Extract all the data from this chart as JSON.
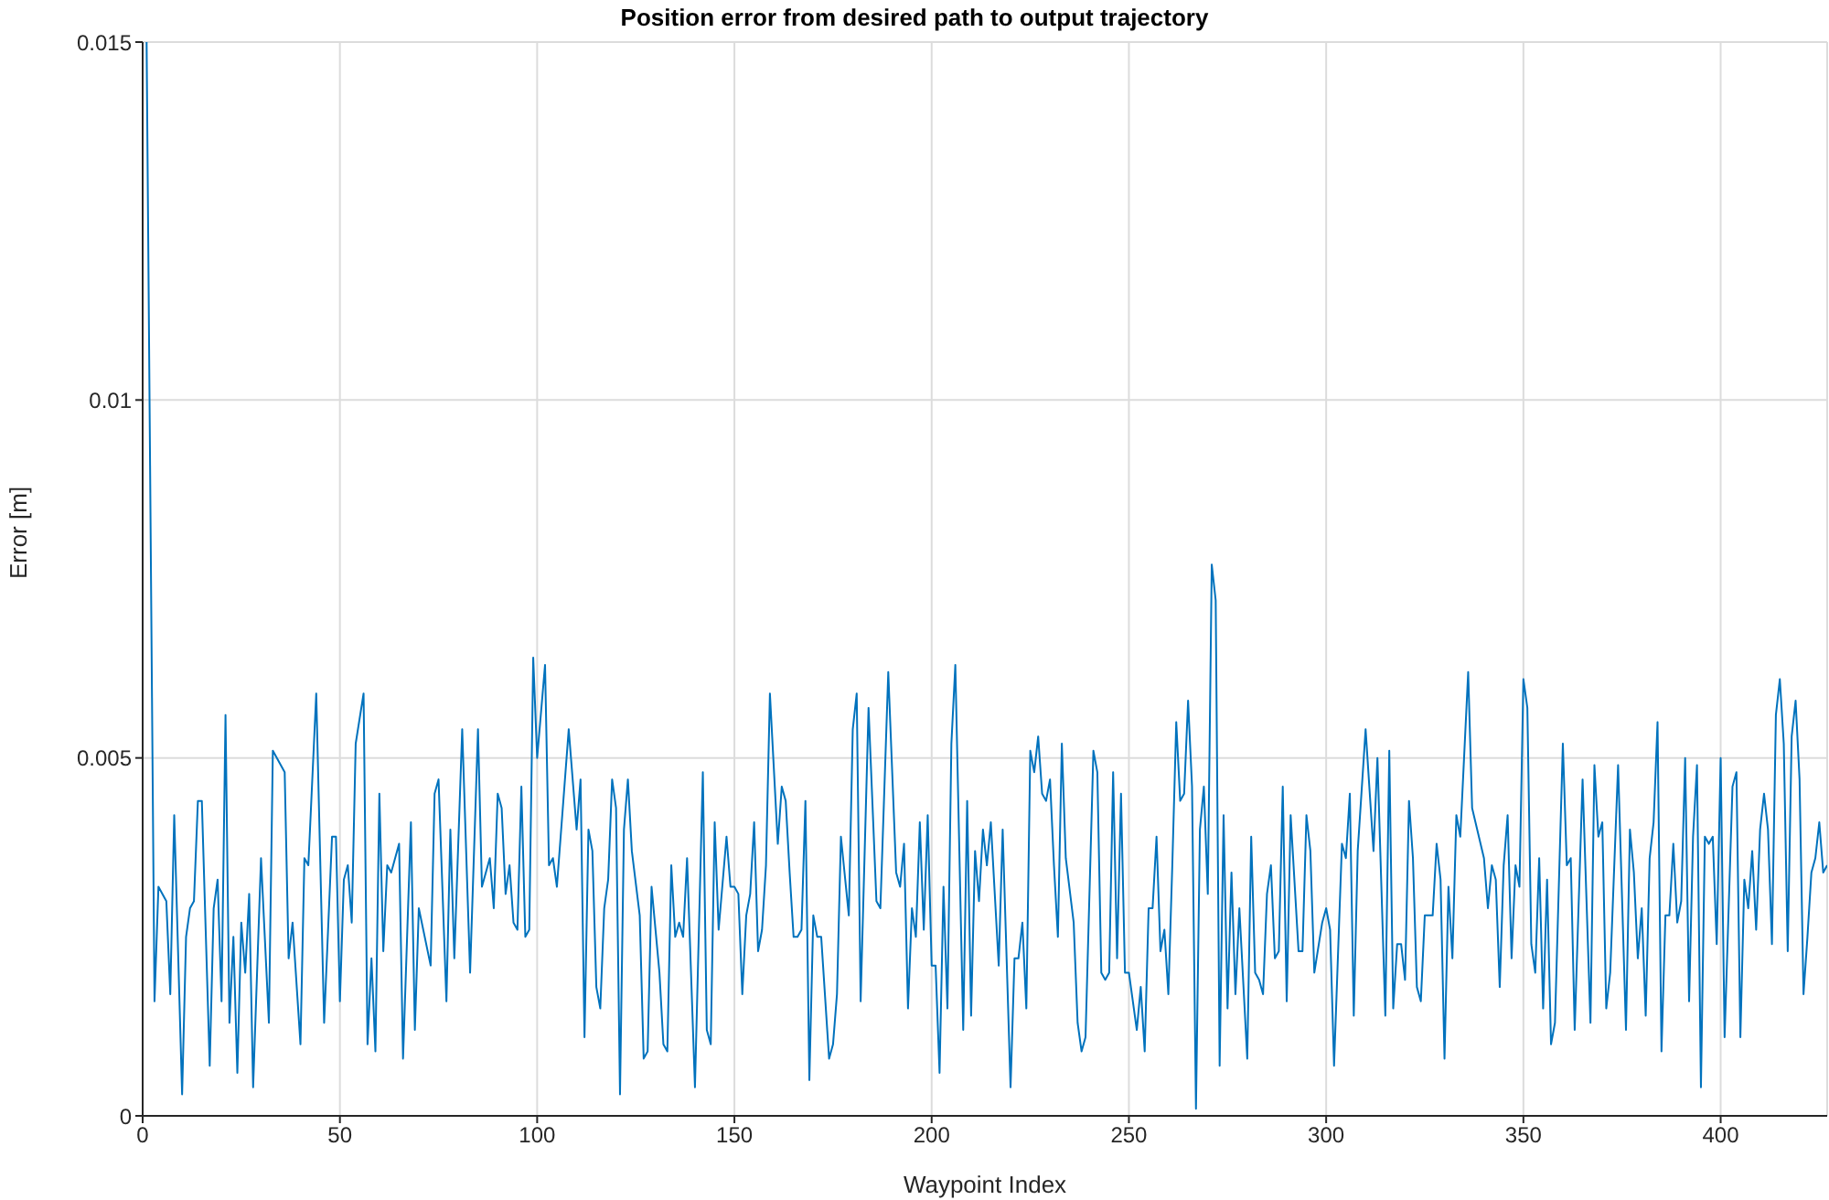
{
  "chart_data": {
    "type": "line",
    "title": "Position error from desired path to output trajectory",
    "xlabel": "Waypoint Index",
    "ylabel": "Error [m]",
    "x": [
      1,
      3,
      4,
      6,
      7,
      8,
      10,
      11,
      12,
      13,
      14,
      15,
      17,
      18,
      19,
      20,
      21,
      22,
      23,
      24,
      25,
      26,
      27,
      28,
      30,
      32,
      33,
      36,
      37,
      38,
      40,
      41,
      42,
      44,
      46,
      48,
      49,
      50,
      51,
      52,
      53,
      54,
      56,
      57,
      58,
      59,
      60,
      61,
      62,
      63,
      65,
      66,
      68,
      69,
      70,
      73,
      74,
      75,
      77,
      78,
      79,
      81,
      83,
      85,
      86,
      88,
      89,
      90,
      91,
      92,
      93,
      94,
      95,
      96,
      97,
      98,
      99,
      100,
      102,
      103,
      104,
      105,
      108,
      110,
      111,
      112,
      113,
      114,
      115,
      116,
      117,
      118,
      119,
      120,
      121,
      122,
      123,
      124,
      126,
      127,
      128,
      129,
      131,
      132,
      133,
      134,
      135,
      136,
      137,
      138,
      140,
      142,
      143,
      144,
      145,
      146,
      148,
      149,
      150,
      151,
      152,
      153,
      154,
      155,
      156,
      157,
      158,
      159,
      161,
      162,
      163,
      164,
      165,
      166,
      167,
      168,
      169,
      170,
      171,
      172,
      174,
      175,
      176,
      177,
      179,
      180,
      181,
      182,
      184,
      186,
      187,
      189,
      191,
      192,
      193,
      194,
      195,
      196,
      197,
      198,
      199,
      200,
      201,
      202,
      203,
      204,
      205,
      206,
      208,
      209,
      210,
      211,
      212,
      213,
      214,
      215,
      217,
      218,
      220,
      221,
      222,
      223,
      224,
      225,
      226,
      227,
      228,
      229,
      230,
      231,
      232,
      233,
      234,
      236,
      237,
      238,
      239,
      241,
      242,
      243,
      244,
      245,
      246,
      247,
      248,
      249,
      250,
      252,
      253,
      254,
      255,
      256,
      257,
      258,
      259,
      260,
      261,
      262,
      263,
      264,
      265,
      266,
      267,
      268,
      269,
      270,
      271,
      272,
      273,
      274,
      275,
      276,
      277,
      278,
      280,
      281,
      282,
      283,
      284,
      285,
      286,
      287,
      288,
      289,
      290,
      291,
      293,
      294,
      295,
      296,
      297,
      299,
      300,
      301,
      302,
      304,
      305,
      306,
      307,
      308,
      310,
      312,
      313,
      315,
      316,
      317,
      318,
      319,
      320,
      321,
      322,
      323,
      324,
      325,
      327,
      328,
      329,
      330,
      331,
      332,
      333,
      334,
      336,
      337,
      340,
      341,
      342,
      343,
      344,
      345,
      346,
      347,
      348,
      349,
      350,
      351,
      352,
      353,
      354,
      355,
      356,
      357,
      358,
      360,
      361,
      362,
      363,
      365,
      367,
      368,
      369,
      370,
      371,
      372,
      374,
      376,
      377,
      378,
      379,
      380,
      381,
      382,
      383,
      384,
      385,
      386,
      387,
      388,
      389,
      390,
      391,
      392,
      393,
      394,
      395,
      396,
      397,
      398,
      399,
      400,
      401,
      403,
      404,
      405,
      406,
      407,
      408,
      409,
      410,
      411,
      412,
      413,
      414,
      415,
      416,
      417,
      418,
      419,
      420,
      421,
      422,
      423,
      424,
      425,
      426,
      427
    ],
    "values": [
      0.015,
      0.0016,
      0.0032,
      0.003,
      0.0017,
      0.0042,
      0.0003,
      0.0025,
      0.0029,
      0.003,
      0.0044,
      0.0044,
      0.0007,
      0.0029,
      0.0033,
      0.0016,
      0.0056,
      0.0013,
      0.0025,
      0.0006,
      0.0027,
      0.002,
      0.0031,
      0.0004,
      0.0036,
      0.0013,
      0.0051,
      0.0048,
      0.0022,
      0.0027,
      0.001,
      0.0036,
      0.0035,
      0.0059,
      0.0013,
      0.0039,
      0.0039,
      0.0016,
      0.0033,
      0.0035,
      0.0027,
      0.0052,
      0.0059,
      0.001,
      0.0022,
      0.0009,
      0.0045,
      0.0023,
      0.0035,
      0.0034,
      0.0038,
      0.0008,
      0.0041,
      0.0012,
      0.0029,
      0.0021,
      0.0045,
      0.0047,
      0.0016,
      0.004,
      0.0022,
      0.0054,
      0.002,
      0.0054,
      0.0032,
      0.0036,
      0.0029,
      0.0045,
      0.0043,
      0.0031,
      0.0035,
      0.0027,
      0.0026,
      0.0046,
      0.0025,
      0.0026,
      0.0064,
      0.005,
      0.0063,
      0.0035,
      0.0036,
      0.0032,
      0.0054,
      0.004,
      0.0047,
      0.0011,
      0.004,
      0.0037,
      0.0018,
      0.0015,
      0.0029,
      0.0033,
      0.0047,
      0.0043,
      0.0003,
      0.004,
      0.0047,
      0.0037,
      0.0028,
      0.0008,
      0.0009,
      0.0032,
      0.002,
      0.001,
      0.0009,
      0.0035,
      0.0025,
      0.0027,
      0.0025,
      0.0036,
      0.0004,
      0.0048,
      0.0012,
      0.001,
      0.0041,
      0.0026,
      0.0039,
      0.0032,
      0.0032,
      0.0031,
      0.0017,
      0.0028,
      0.0031,
      0.0041,
      0.0023,
      0.0026,
      0.0035,
      0.0059,
      0.0038,
      0.0046,
      0.0044,
      0.0034,
      0.0025,
      0.0025,
      0.0026,
      0.0044,
      0.0005,
      0.0028,
      0.0025,
      0.0025,
      0.0008,
      0.001,
      0.0017,
      0.0039,
      0.0028,
      0.0054,
      0.0059,
      0.0016,
      0.0057,
      0.003,
      0.0029,
      0.0062,
      0.0034,
      0.0032,
      0.0038,
      0.0015,
      0.0029,
      0.0025,
      0.0041,
      0.0026,
      0.0042,
      0.0021,
      0.0021,
      0.0006,
      0.0032,
      0.0015,
      0.0052,
      0.0063,
      0.0012,
      0.0044,
      0.0014,
      0.0037,
      0.003,
      0.004,
      0.0035,
      0.0041,
      0.0021,
      0.004,
      0.0004,
      0.0022,
      0.0022,
      0.0027,
      0.0015,
      0.0051,
      0.0048,
      0.0053,
      0.0045,
      0.0044,
      0.0047,
      0.0035,
      0.0025,
      0.0052,
      0.0036,
      0.0027,
      0.0013,
      0.0009,
      0.0011,
      0.0051,
      0.0048,
      0.002,
      0.0019,
      0.002,
      0.0048,
      0.0022,
      0.0045,
      0.002,
      0.002,
      0.0012,
      0.0018,
      0.0009,
      0.0029,
      0.0029,
      0.0039,
      0.0023,
      0.0026,
      0.0017,
      0.0035,
      0.0055,
      0.0044,
      0.0045,
      0.0058,
      0.0046,
      0.0001,
      0.004,
      0.0046,
      0.0031,
      0.0077,
      0.0072,
      0.0007,
      0.0042,
      0.0015,
      0.0034,
      0.0017,
      0.0029,
      0.0008,
      0.0039,
      0.002,
      0.0019,
      0.0017,
      0.0031,
      0.0035,
      0.0022,
      0.0023,
      0.0046,
      0.0016,
      0.0042,
      0.0023,
      0.0023,
      0.0042,
      0.0037,
      0.002,
      0.0027,
      0.0029,
      0.0026,
      0.0007,
      0.0038,
      0.0036,
      0.0045,
      0.0014,
      0.0037,
      0.0054,
      0.0037,
      0.005,
      0.0014,
      0.0051,
      0.0015,
      0.0024,
      0.0024,
      0.0019,
      0.0044,
      0.0036,
      0.0018,
      0.0016,
      0.0028,
      0.0028,
      0.0038,
      0.0033,
      0.0008,
      0.0032,
      0.0022,
      0.0042,
      0.0039,
      0.0062,
      0.0043,
      0.0036,
      0.0029,
      0.0035,
      0.0033,
      0.0018,
      0.0035,
      0.0042,
      0.0022,
      0.0035,
      0.0032,
      0.0061,
      0.0057,
      0.0024,
      0.002,
      0.0036,
      0.0015,
      0.0033,
      0.001,
      0.0013,
      0.0052,
      0.0035,
      0.0036,
      0.0012,
      0.0047,
      0.0013,
      0.0049,
      0.0039,
      0.0041,
      0.0015,
      0.002,
      0.0049,
      0.0012,
      0.004,
      0.0034,
      0.0022,
      0.0029,
      0.0014,
      0.0036,
      0.0041,
      0.0055,
      0.0009,
      0.0028,
      0.0028,
      0.0038,
      0.0027,
      0.003,
      0.005,
      0.0016,
      0.0039,
      0.0049,
      0.0004,
      0.0039,
      0.0038,
      0.0039,
      0.0024,
      0.005,
      0.0011,
      0.0046,
      0.0048,
      0.0011,
      0.0033,
      0.0029,
      0.0037,
      0.0026,
      0.004,
      0.0045,
      0.004,
      0.0024,
      0.0056,
      0.0061,
      0.0052,
      0.0023,
      0.0053,
      0.0058,
      0.0047,
      0.0017,
      0.0025,
      0.0034,
      0.0036,
      0.0041,
      0.0034,
      0.0035
    ],
    "color": "#0072bd",
    "xlim": [
      0,
      427
    ],
    "xticks": [
      0,
      50,
      100,
      150,
      200,
      250,
      300,
      350,
      400
    ],
    "ylim": [
      0,
      0.015
    ],
    "yticks": [
      0,
      0.005,
      0.01,
      0.015
    ],
    "grid": true,
    "marker": "none",
    "line_style": "solid"
  }
}
